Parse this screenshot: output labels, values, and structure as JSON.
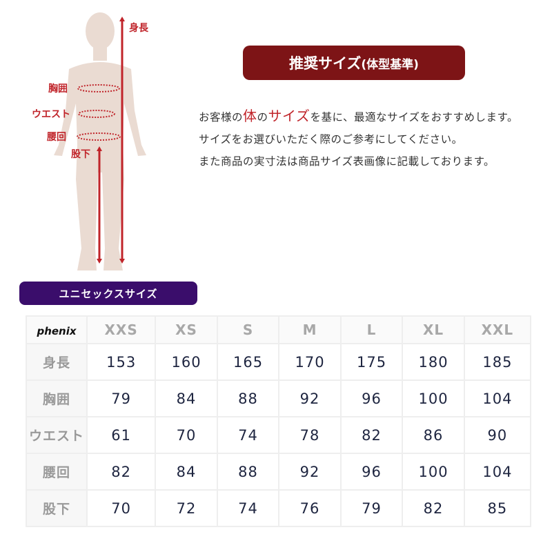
{
  "figure": {
    "labels": {
      "height": "身長",
      "chest": "胸囲",
      "waist": "ウエスト",
      "hip": "腰回",
      "inseam": "股下"
    },
    "colors": {
      "body": "#eadbd2",
      "measure": "#c0242a"
    }
  },
  "title": {
    "main": "推奨サイズ",
    "sub": "(体型基準)"
  },
  "description": {
    "p1_a": "お客様の",
    "p1_em1": "体",
    "p1_b": "の",
    "p1_em2": "サイズ",
    "p1_c": "を基に、最適なサイズをおすすめします。",
    "p2": "サイズをお選びいただく際のご参考にしてください。",
    "p3": "また商品の実寸法は商品サイズ表画像に記載しております。"
  },
  "section_label": "ユニセックスサイズ",
  "table": {
    "brand_logo": "phenix",
    "sizes": [
      "XXS",
      "XS",
      "S",
      "M",
      "L",
      "XL",
      "XXL"
    ],
    "rows": [
      {
        "label": "身長",
        "values": [
          "153",
          "160",
          "165",
          "170",
          "175",
          "180",
          "185"
        ]
      },
      {
        "label": "胸囲",
        "values": [
          "79",
          "84",
          "88",
          "92",
          "96",
          "100",
          "104"
        ]
      },
      {
        "label": "ウエスト",
        "values": [
          "61",
          "70",
          "74",
          "78",
          "82",
          "86",
          "90"
        ]
      },
      {
        "label": "腰回",
        "values": [
          "82",
          "84",
          "88",
          "92",
          "96",
          "100",
          "104"
        ]
      },
      {
        "label": "股下",
        "values": [
          "70",
          "72",
          "74",
          "76",
          "79",
          "82",
          "85"
        ]
      }
    ]
  }
}
